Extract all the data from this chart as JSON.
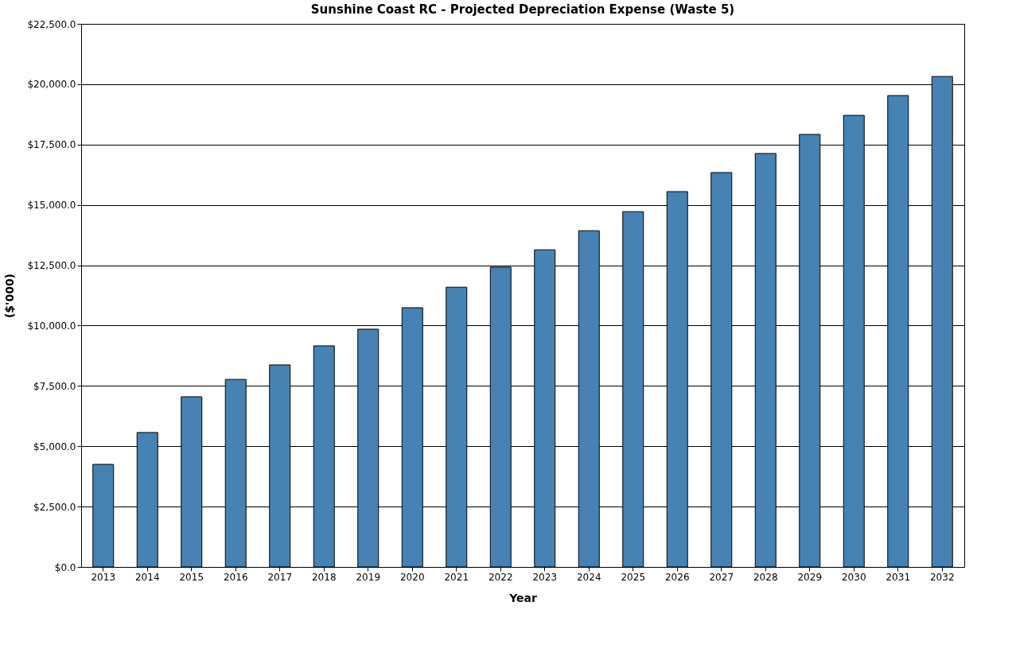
{
  "chart_data": {
    "type": "bar",
    "title": "Sunshine Coast RC - Projected Depreciation Expense (Waste 5)",
    "xlabel": "Year",
    "ylabel": "($'000)",
    "categories": [
      "2013",
      "2014",
      "2015",
      "2016",
      "2017",
      "2018",
      "2019",
      "2020",
      "2021",
      "2022",
      "2023",
      "2024",
      "2025",
      "2026",
      "2027",
      "2028",
      "2029",
      "2030",
      "2031",
      "2032"
    ],
    "values": [
      4250,
      5570,
      7050,
      7770,
      8370,
      9160,
      9850,
      10740,
      11590,
      12420,
      13140,
      13930,
      14720,
      15550,
      16340,
      17130,
      17920,
      18710,
      19530,
      20320
    ],
    "color": "#4682b4",
    "ylim": [
      0,
      22500
    ],
    "yticks": [
      {
        "value": 0,
        "label": "$0.0"
      },
      {
        "value": 2500,
        "label": "$2,500.0"
      },
      {
        "value": 5000,
        "label": "$5,000.0"
      },
      {
        "value": 7500,
        "label": "$7,500.0"
      },
      {
        "value": 10000,
        "label": "$10,000.0"
      },
      {
        "value": 12500,
        "label": "$12,500.0"
      },
      {
        "value": 15000,
        "label": "$15,000.0"
      },
      {
        "value": 17500,
        "label": "$17,500.0"
      },
      {
        "value": 20000,
        "label": "$20,000.0"
      },
      {
        "value": 22500,
        "label": "$22,500.0"
      }
    ],
    "grid": "y"
  }
}
